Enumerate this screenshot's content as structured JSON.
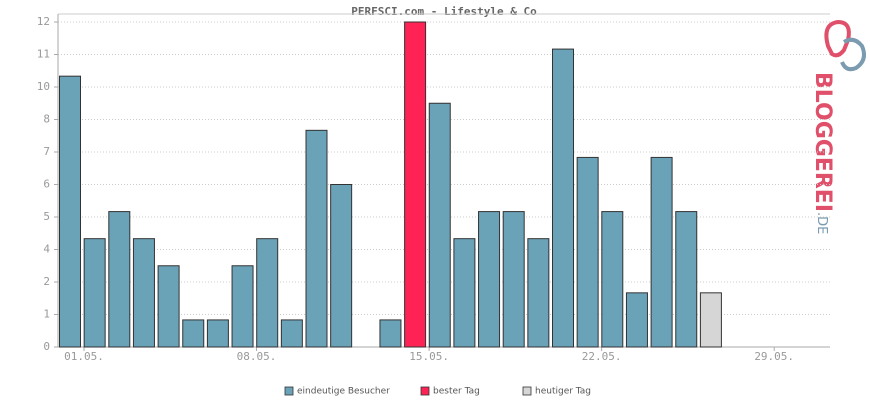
{
  "chart_data": {
    "type": "bar",
    "title": "PERFSCI.com - Lifestyle & Co",
    "categories": [
      "01.05.",
      null,
      null,
      null,
      null,
      null,
      null,
      "08.05.",
      null,
      null,
      null,
      null,
      null,
      null,
      "15.05.",
      null,
      null,
      null,
      null,
      null,
      null,
      "22.05.",
      null,
      null,
      null,
      null,
      null,
      null,
      "29.05.",
      null,
      null
    ],
    "series": [
      {
        "name": "eindeutige Besucher",
        "color": "#6aa2b8",
        "values": [
          10,
          4,
          5,
          4,
          3,
          1,
          1,
          3,
          4,
          1,
          8,
          6,
          0,
          1,
          null,
          9,
          4,
          5,
          5,
          4,
          11,
          7,
          5,
          2,
          7,
          5,
          null,
          null,
          null,
          null,
          null
        ]
      },
      {
        "name": "bester Tag",
        "color": "#ff2255",
        "values": [
          null,
          null,
          null,
          null,
          null,
          null,
          null,
          null,
          null,
          null,
          null,
          null,
          null,
          null,
          12,
          null,
          null,
          null,
          null,
          null,
          null,
          null,
          null,
          null,
          null,
          null,
          null,
          null,
          null,
          null,
          null
        ]
      },
      {
        "name": "heutiger Tag",
        "color": "#d6d6d6",
        "values": [
          null,
          null,
          null,
          null,
          null,
          null,
          null,
          null,
          null,
          null,
          null,
          null,
          null,
          null,
          null,
          null,
          null,
          null,
          null,
          null,
          null,
          null,
          null,
          null,
          null,
          null,
          2,
          null,
          null,
          null,
          null
        ]
      }
    ],
    "ylim": [
      0,
      12
    ],
    "yticks": [
      0,
      {
        "value": 1.2,
        "label": "1"
      },
      {
        "value": 2.4,
        "label": "2"
      },
      {
        "value": 3.6,
        "label": "4"
      },
      {
        "value": 4.8,
        "label": "5"
      },
      6,
      {
        "value": 7.2,
        "label": "7"
      },
      {
        "value": 8.4,
        "label": "8"
      },
      {
        "value": 9.6,
        "label": "10"
      },
      {
        "value": 10.8,
        "label": "11"
      },
      12
    ],
    "grid": true,
    "legend": "bottom"
  },
  "logo": {
    "name": "BLOGGEREI",
    "suffix": ".DE"
  }
}
